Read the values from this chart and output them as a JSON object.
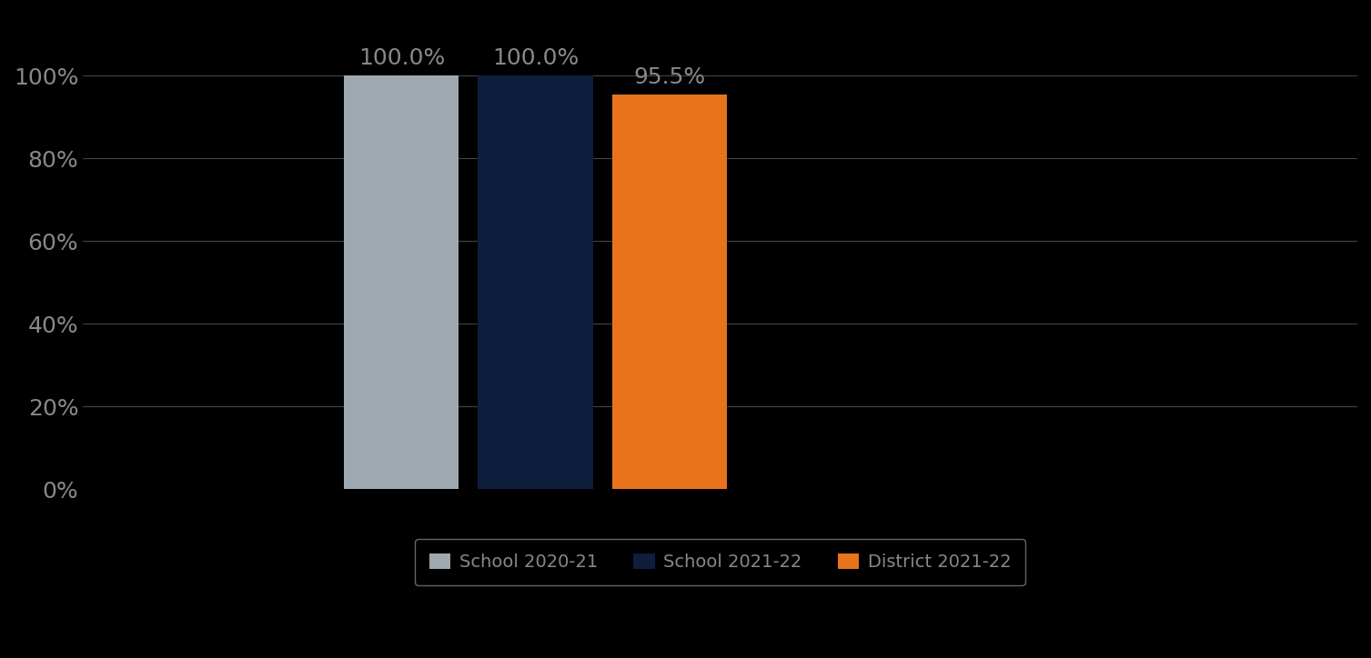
{
  "categories": [
    "School 2020-21",
    "School 2021-22",
    "District 2021-22"
  ],
  "values": [
    100.0,
    100.0,
    95.5
  ],
  "bar_colors": [
    "#9ea8b0",
    "#0d1f3c",
    "#e8731a"
  ],
  "label_texts": [
    "100.0%",
    "100.0%",
    "95.5%"
  ],
  "background_color": "#000000",
  "text_color": "#888888",
  "label_color": "#888888",
  "grid_color": "#444444",
  "ylim": [
    0,
    115
  ],
  "yticks": [
    0,
    20,
    40,
    60,
    80,
    100
  ],
  "ytick_labels": [
    "0%",
    "20%",
    "40%",
    "60%",
    "80%",
    "100%"
  ],
  "bar_width": 0.18,
  "bar_positions": [
    1.0,
    1.21,
    1.42
  ],
  "xlim": [
    0.5,
    2.5
  ],
  "legend_labels": [
    "School 2020-21",
    "School 2021-22",
    "District 2021-22"
  ],
  "legend_edge_color": "#666666",
  "bar_label_fontsize": 18,
  "axis_tick_fontsize": 18,
  "legend_fontsize": 14,
  "label_fontweight": "normal"
}
